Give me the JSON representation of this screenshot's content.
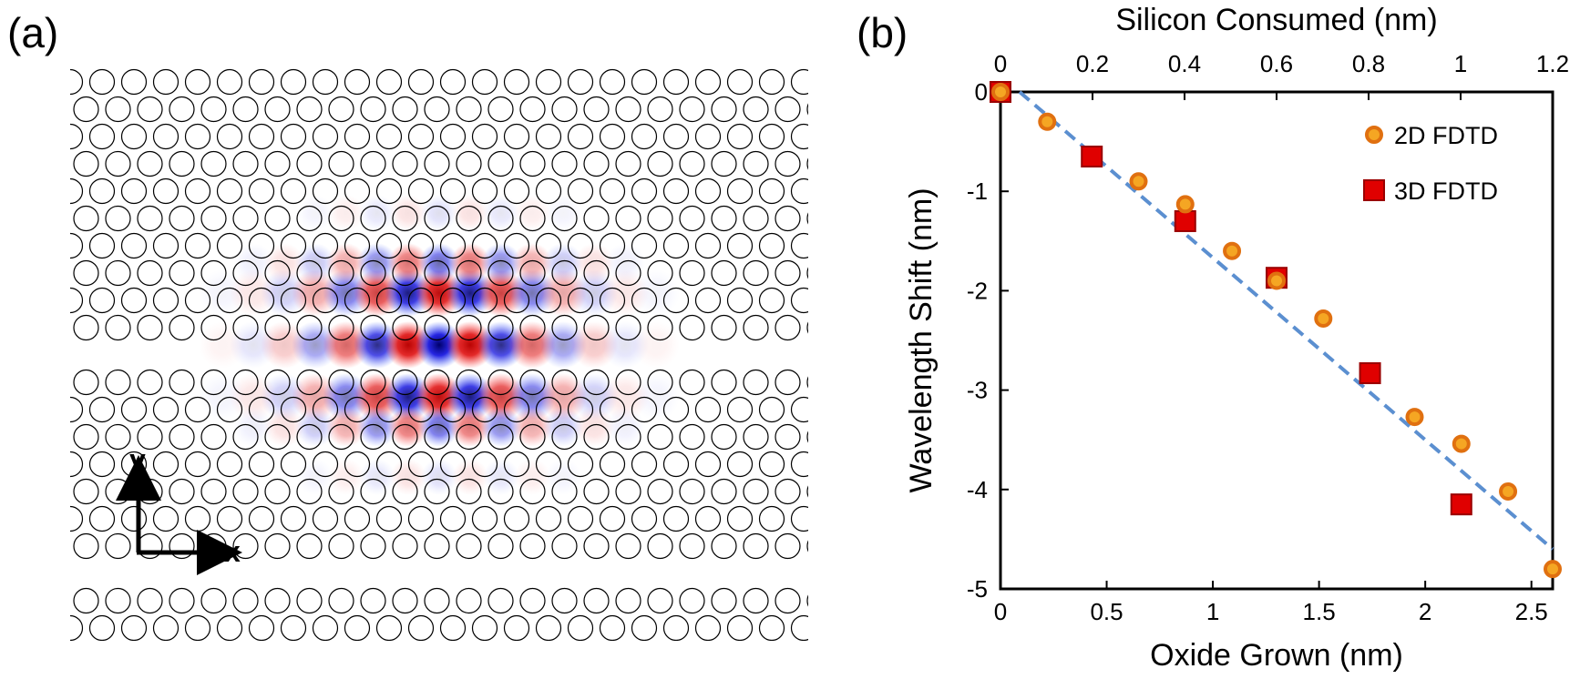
{
  "panel_a": {
    "label": "(a)",
    "axis_x_label": "x",
    "axis_y_label": "y",
    "colors": {
      "positive": "#d40000",
      "negative": "#0000cc",
      "hole_stroke": "#000000"
    }
  },
  "panel_b": {
    "label": "(b)"
  },
  "chart_data": {
    "type": "scatter",
    "xlabel": "Oxide Grown (nm)",
    "x2label": "Silicon Consumed (nm)",
    "ylabel": "Wavelength Shift (nm)",
    "xlim": [
      0,
      2.6
    ],
    "x2lim": [
      0,
      1.2
    ],
    "ylim": [
      -5,
      0
    ],
    "xticks": [
      0,
      0.5,
      1,
      1.5,
      2,
      2.5
    ],
    "xtick_labels": [
      "0",
      "0.5",
      "1",
      "1.5",
      "2",
      "2.5"
    ],
    "x2ticks": [
      0,
      0.2,
      0.4,
      0.6,
      0.8,
      1,
      1.2
    ],
    "x2tick_labels": [
      "0",
      "0.2",
      "0.4",
      "0.6",
      "0.8",
      "1",
      "1.2"
    ],
    "yticks": [
      0,
      -1,
      -2,
      -3,
      -4,
      -5
    ],
    "ytick_labels": [
      "0",
      "-1",
      "-2",
      "-3",
      "-4",
      "-5"
    ],
    "legend_position": "top-right",
    "series": [
      {
        "name": "2D FDTD",
        "marker": "circle",
        "color": "#f5a623",
        "edge_color": "#e07010",
        "x": [
          0,
          0.22,
          0.65,
          0.87,
          1.09,
          1.3,
          1.52,
          1.95,
          2.17,
          2.39,
          2.6
        ],
        "y": [
          0,
          -0.3,
          -0.9,
          -1.13,
          -1.6,
          -1.9,
          -2.28,
          -3.27,
          -3.54,
          -4.02,
          -4.8
        ]
      },
      {
        "name": "3D FDTD",
        "marker": "square",
        "color": "#e00000",
        "edge_color": "#9a0000",
        "x": [
          0,
          0.43,
          0.87,
          1.3,
          1.74,
          2.17
        ],
        "y": [
          0,
          -0.65,
          -1.3,
          -1.87,
          -2.83,
          -4.15
        ]
      }
    ],
    "fit_line": {
      "style": "dashed",
      "color": "#5b8fd0",
      "x": [
        0.09,
        2.6
      ],
      "y": [
        0,
        -4.6
      ]
    }
  }
}
